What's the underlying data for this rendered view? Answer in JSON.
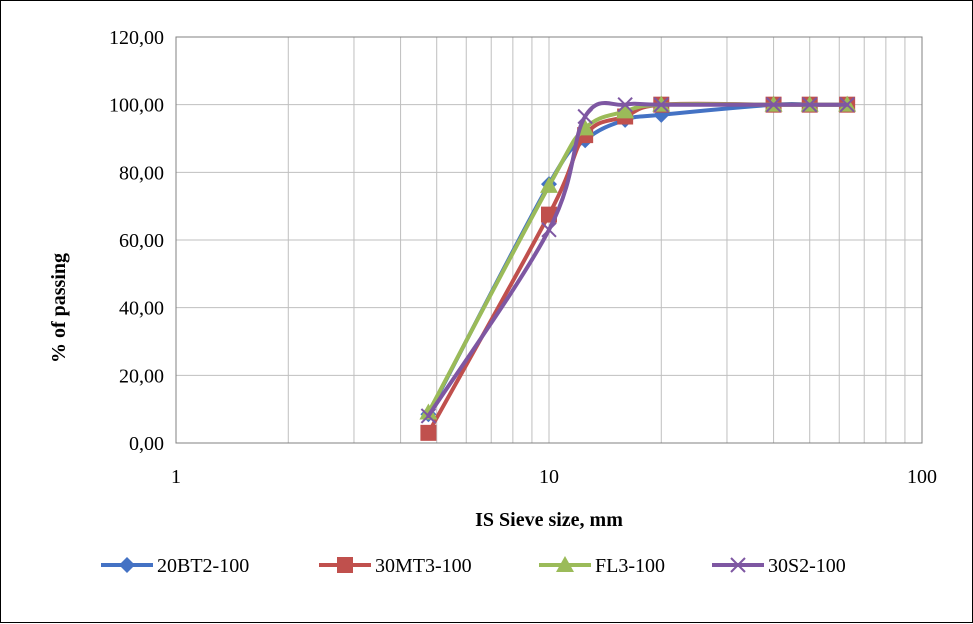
{
  "chart_data": {
    "type": "line",
    "xscale": "log",
    "xlim": [
      1,
      100
    ],
    "ylim": [
      0,
      100
    ],
    "ylim_display": [
      0,
      120
    ],
    "grid": true,
    "legend_position": "bottom",
    "xlabel": "IS Sieve size, mm",
    "ylabel": "% of passing",
    "x_ticks": [
      "1",
      "10",
      "100"
    ],
    "y_ticks": [
      "0,00",
      "20,00",
      "40,00",
      "60,00",
      "80,00",
      "100,00",
      "120,00"
    ],
    "series": [
      {
        "name": "20BT2-100",
        "color": "#4472C4",
        "marker": "diamond",
        "x": [
          4.75,
          10,
          12.5,
          16,
          20,
          40,
          50,
          63
        ],
        "y": [
          8.5,
          76.5,
          89.5,
          95.5,
          97,
          100,
          100,
          100
        ]
      },
      {
        "name": "30MT3-100",
        "color": "#C0504D",
        "marker": "square",
        "x": [
          4.75,
          10,
          12.5,
          16,
          20,
          40,
          50,
          63
        ],
        "y": [
          3,
          67.5,
          91,
          96.5,
          100,
          100,
          100,
          100
        ]
      },
      {
        "name": "FL3-100",
        "color": "#9BBB59",
        "marker": "triangle",
        "x": [
          4.75,
          10,
          12.5,
          16,
          20,
          40,
          50,
          63
        ],
        "y": [
          9,
          76,
          93,
          98,
          100,
          100,
          100,
          100
        ]
      },
      {
        "name": "30S2-100",
        "color": "#7E57A2",
        "marker": "x",
        "x": [
          4.75,
          10,
          12.5,
          16,
          20,
          40,
          50,
          63
        ],
        "y": [
          8,
          63,
          96.5,
          100,
          100,
          100,
          100,
          100
        ]
      }
    ]
  }
}
